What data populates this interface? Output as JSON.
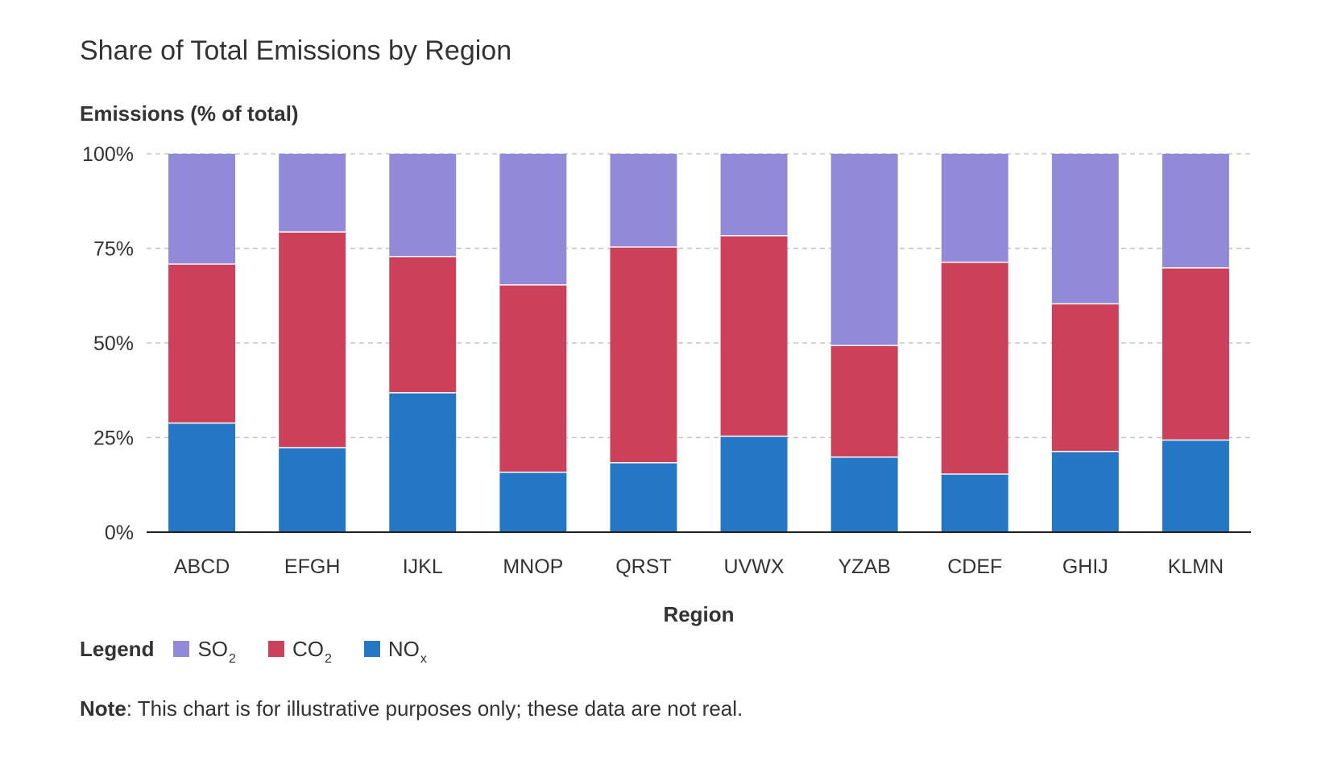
{
  "title": "Share of Total Emissions by Region",
  "y_axis_title": "Emissions (% of total)",
  "x_axis_title": "Region",
  "legend": {
    "title": "Legend",
    "items": [
      {
        "base": "SO",
        "sub": "2",
        "color": "#9389d9"
      },
      {
        "base": "CO",
        "sub": "2",
        "color": "#cc4059"
      },
      {
        "base": "NO",
        "sub": "x",
        "color": "#2477c4"
      }
    ]
  },
  "note": {
    "label": "Note",
    "text": ": This chart is for illustrative purposes only; these data are not real."
  },
  "chart_data": {
    "type": "bar",
    "stacked": true,
    "categories": [
      "ABCD",
      "EFGH",
      "IJKL",
      "MNOP",
      "QRST",
      "UVWX",
      "YZAB",
      "CDEF",
      "GHIJ",
      "KLMN"
    ],
    "series": [
      {
        "name": "NOx",
        "color": "#2477c4",
        "values": [
          29,
          22.5,
          37,
          16,
          18.5,
          25.5,
          20,
          15.5,
          21.5,
          24.5
        ]
      },
      {
        "name": "CO2",
        "color": "#cc4059",
        "values": [
          42,
          57,
          36,
          49.5,
          57,
          53,
          29.5,
          56,
          39,
          45.5
        ]
      },
      {
        "name": "SO2",
        "color": "#9389d9",
        "values": [
          29,
          20.5,
          27,
          34.5,
          24.5,
          21.5,
          50.5,
          28.5,
          39.5,
          30
        ]
      }
    ],
    "yticks": [
      "0%",
      "25%",
      "50%",
      "75%",
      "100%"
    ],
    "ytick_values": [
      0,
      25,
      50,
      75,
      100
    ],
    "ylim": [
      0,
      100
    ],
    "grid": true
  }
}
